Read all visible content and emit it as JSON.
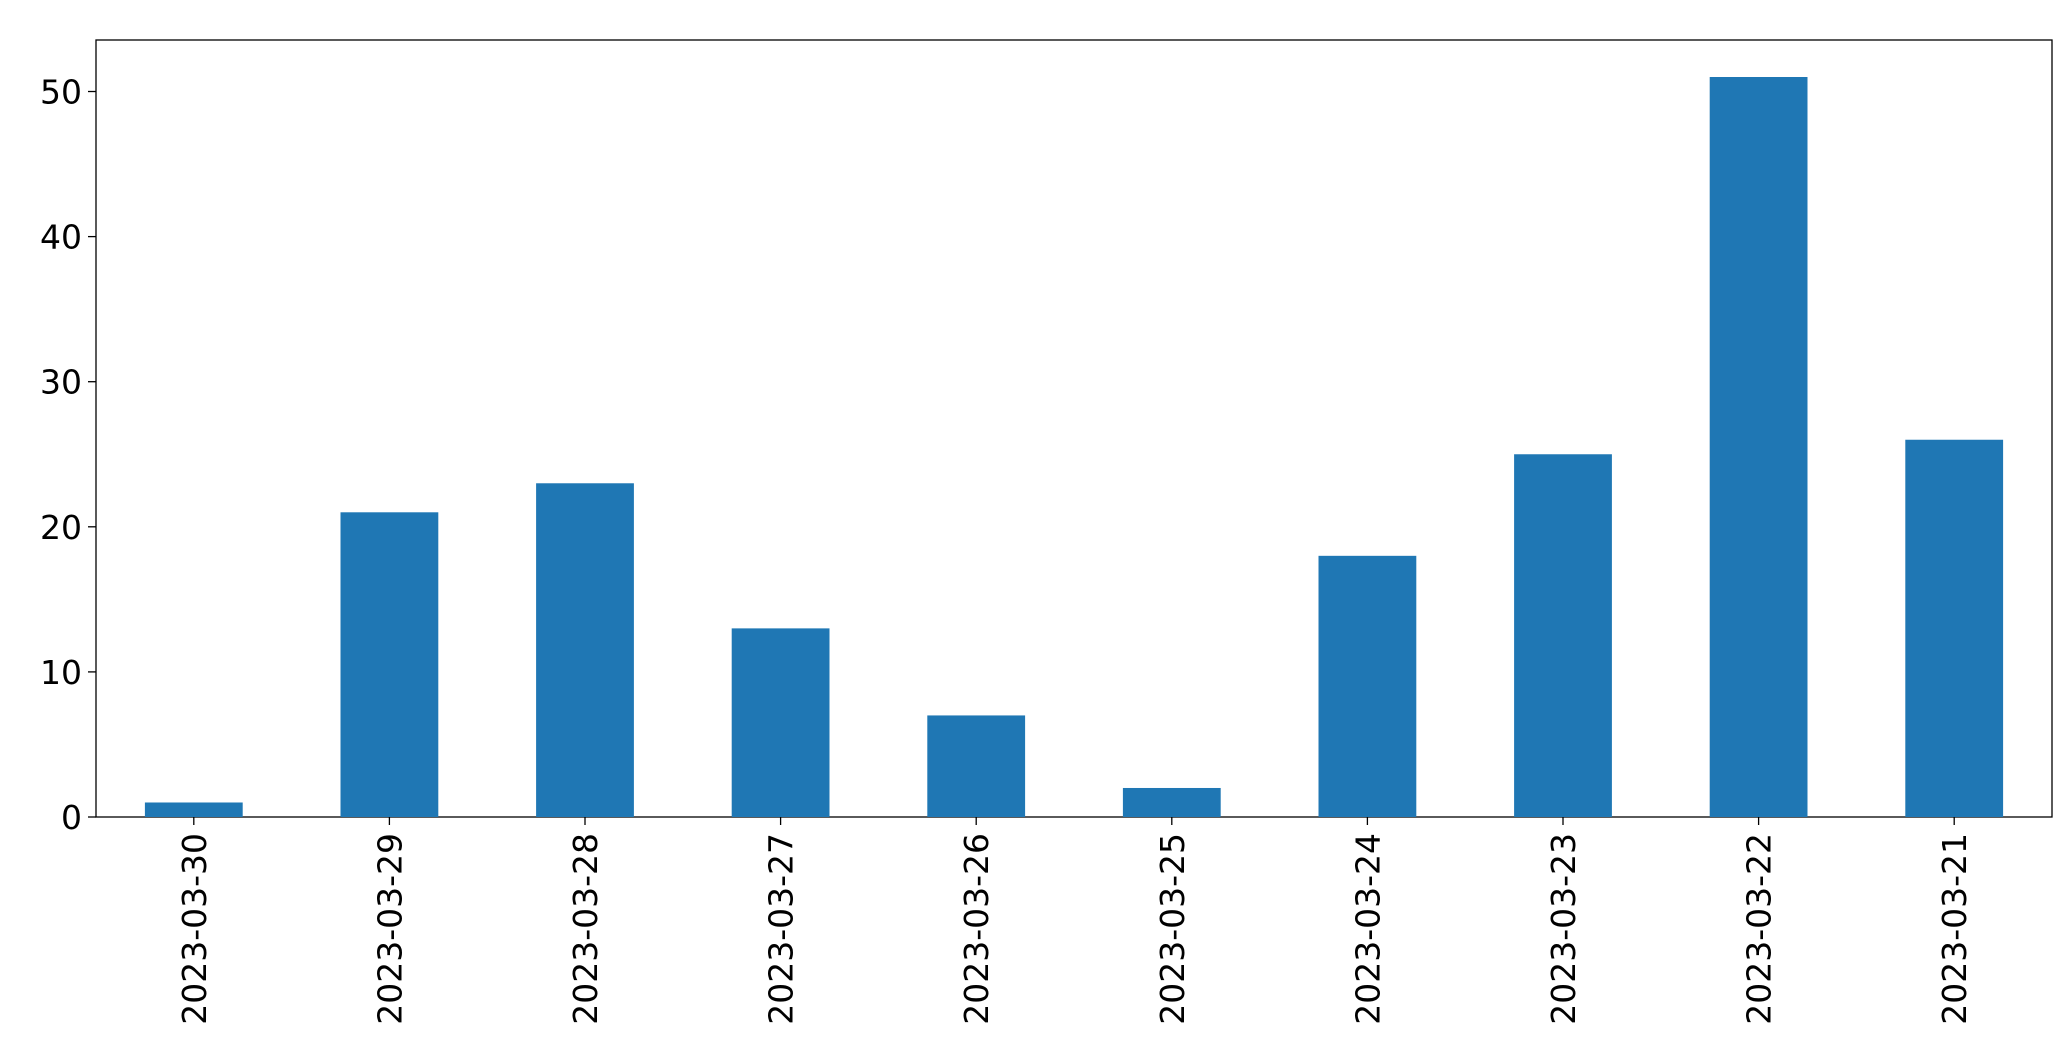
{
  "chart_data": {
    "type": "bar",
    "categories": [
      "2023-03-30",
      "2023-03-29",
      "2023-03-28",
      "2023-03-27",
      "2023-03-26",
      "2023-03-25",
      "2023-03-24",
      "2023-03-23",
      "2023-03-22",
      "2023-03-21"
    ],
    "values": [
      1,
      21,
      23,
      13,
      7,
      2,
      18,
      25,
      51,
      26
    ],
    "color": "#1f77b4",
    "ylim": [
      0,
      53.55
    ],
    "yticks": [
      0,
      10,
      20,
      30,
      40,
      50
    ],
    "grid": false
  }
}
